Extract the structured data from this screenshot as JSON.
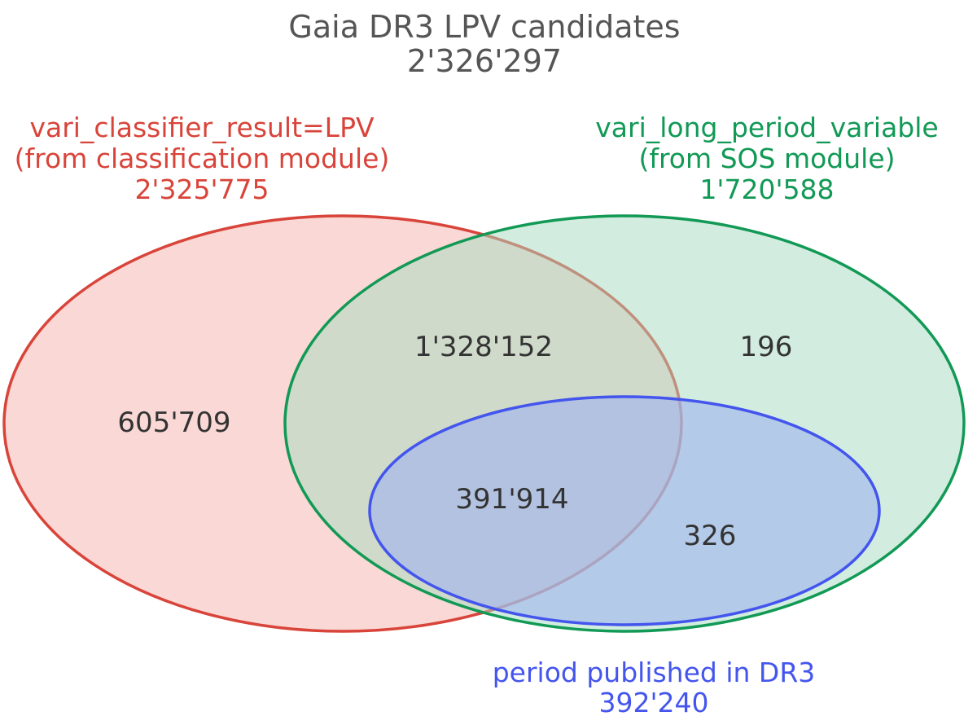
{
  "title": {
    "line1": "Gaia DR3 LPV candidates",
    "line2": "2'326'297"
  },
  "sets": [
    {
      "id": "classifier",
      "label_lines": [
        "vari_classifier_result=LPV",
        "(from classification module)",
        "2'325'775"
      ],
      "stroke": "#d9443a",
      "fill": "#f4b8b3"
    },
    {
      "id": "sos",
      "label_lines": [
        "vari_long_period_variable",
        "(from SOS module)",
        "1'720'588"
      ],
      "stroke": "#119955",
      "fill": "#a6dcbf"
    },
    {
      "id": "period",
      "label_lines": [
        "period published in DR3",
        "392'240"
      ],
      "stroke": "#4455ee",
      "fill": "#9fb3ee"
    }
  ],
  "regions": {
    "classifier_only": "605'709",
    "classifier_and_sos": "1'328'152",
    "sos_only": "196",
    "all_three": "391'914",
    "sos_and_period": "326"
  }
}
